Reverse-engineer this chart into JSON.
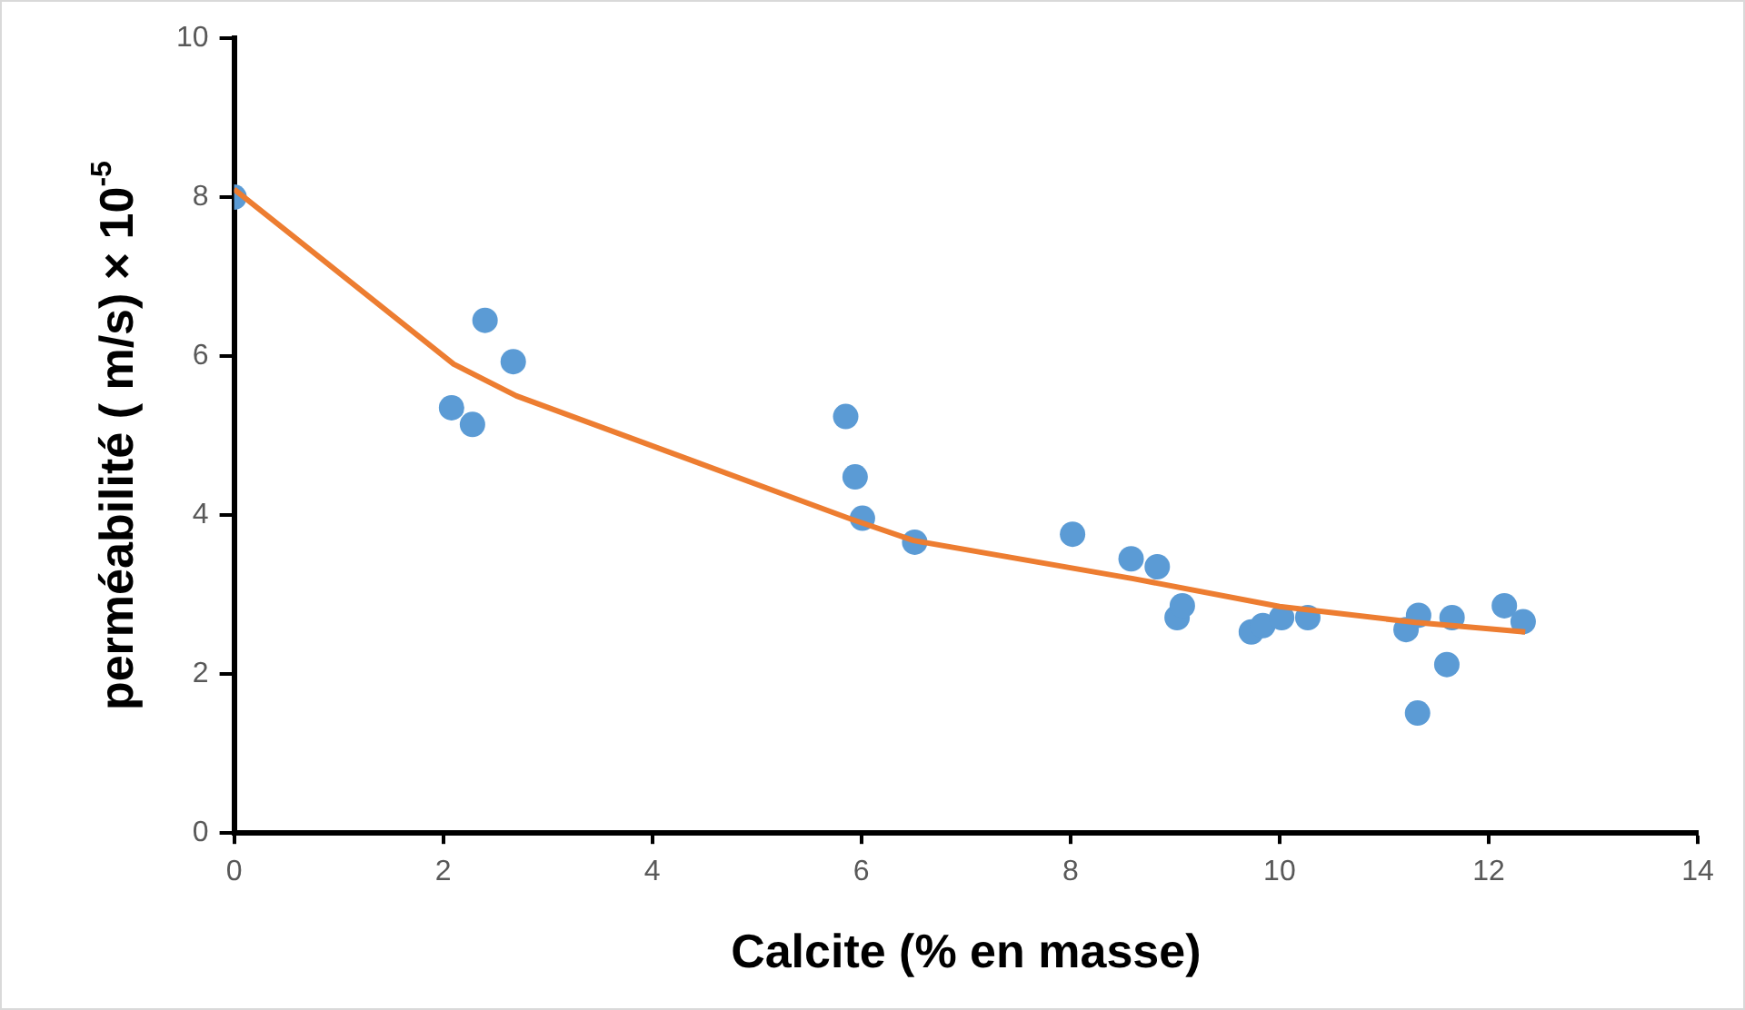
{
  "chart_data": {
    "type": "scatter",
    "xlabel": "Calcite (% en masse)",
    "ylabel": "perméabilité ( m/s) × 10$^{-5}$",
    "xlim": [
      0,
      14
    ],
    "xticks": [
      0,
      2,
      4,
      6,
      8,
      10,
      12,
      14
    ],
    "ylim": [
      0,
      10
    ],
    "yticks": [
      0,
      2,
      4,
      6,
      8,
      10
    ],
    "grid": false,
    "legend": false,
    "series": [
      {
        "marker": "circle",
        "color": "#5b9bd5",
        "x": [
          0,
          2.08,
          2.28,
          2.4,
          2.67,
          5.85,
          5.94,
          6.01,
          6.51,
          8.02,
          8.58,
          8.83,
          9.02,
          9.07,
          9.73,
          9.84,
          10.02,
          10.27,
          11.21,
          11.33,
          11.32,
          11.6,
          11.65,
          12.15,
          12.33
        ],
        "values": [
          8.0,
          5.35,
          5.14,
          6.45,
          5.93,
          5.24,
          4.48,
          3.96,
          3.66,
          3.76,
          3.45,
          3.35,
          2.71,
          2.86,
          2.53,
          2.61,
          2.71,
          2.71,
          2.56,
          2.74,
          1.51,
          2.12,
          2.71,
          2.86,
          2.66
        ]
      },
      {
        "type": "line",
        "marker": "none",
        "color": "#ed7d31",
        "x": [
          0,
          2.1,
          2.7,
          5.9,
          6.5,
          8.6,
          10.0,
          11.3,
          12.35
        ],
        "values": [
          8.1,
          5.9,
          5.5,
          3.95,
          3.68,
          3.2,
          2.85,
          2.65,
          2.53
        ]
      }
    ]
  }
}
